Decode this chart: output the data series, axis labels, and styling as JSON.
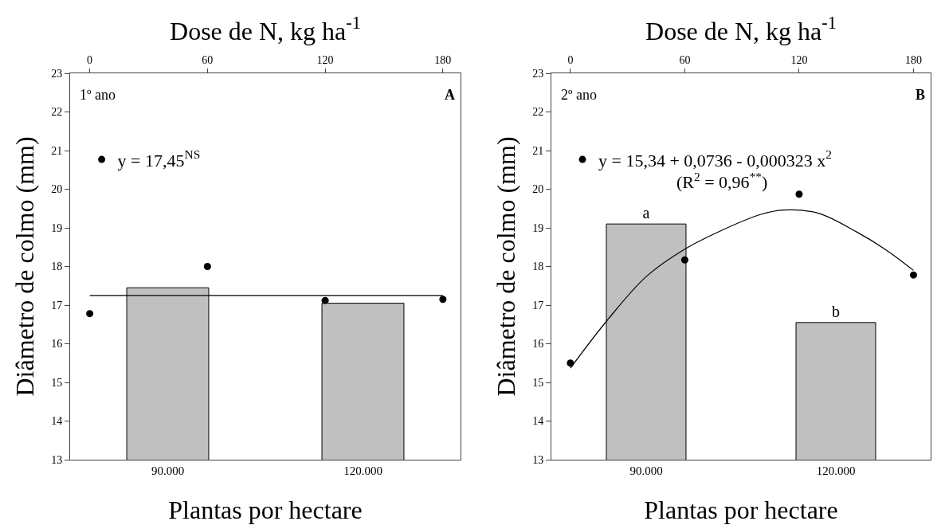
{
  "chart_data": [
    {
      "type": "bar",
      "xlabel": "Plantas por hectare",
      "x2label": "Dose de N, kg ha$^{-1}$",
      "ylabel": "Diâmetro de colmo (mm)",
      "categories": [
        "90.000",
        "120.000"
      ],
      "series": [
        {
          "type": "bar",
          "color": "#c0c0c0",
          "values": [
            17.45,
            17.05
          ]
        },
        {
          "type": "scatter",
          "name": "y = 17,45$^{NS}$",
          "marker": "circle",
          "color": "#000000",
          "axis": "x2",
          "x": [
            0,
            60,
            120,
            180
          ],
          "values": [
            16.78,
            18.0,
            17.12,
            17.15
          ]
        },
        {
          "type": "line",
          "color": "#000000",
          "axis": "x2",
          "x": [
            0,
            180
          ],
          "values": [
            17.25,
            17.25
          ]
        }
      ],
      "ylim": [
        13,
        23
      ],
      "yticks": [
        13,
        14,
        15,
        16,
        17,
        18,
        19,
        20,
        21,
        22,
        23
      ],
      "x2lim": [
        -10,
        189
      ],
      "x2ticks": [
        0,
        60,
        120,
        180
      ],
      "legend": "top left",
      "annotations": [
        "1º ano",
        "A"
      ]
    },
    {
      "type": "bar",
      "xlabel": "Plantas por hectare",
      "x2label": "Dose de N, kg ha$^{-1}$",
      "ylabel": "Diâmetro de colmo (mm)",
      "categories": [
        "90.000",
        "120.000"
      ],
      "series": [
        {
          "type": "bar",
          "color": "#c0c0c0",
          "values": [
            19.1,
            16.55
          ],
          "value_labels": [
            "a",
            "b"
          ]
        },
        {
          "type": "scatter",
          "name": "y = 15,34 + 0,0736 - 0,000323 x$^{2}$",
          "marker": "circle",
          "color": "#000000",
          "axis": "x2",
          "x": [
            0,
            60,
            120,
            180
          ],
          "values": [
            15.5,
            18.17,
            19.87,
            17.78
          ]
        },
        {
          "type": "line",
          "color": "#000000",
          "axis": "x2",
          "x": [
            0,
            20,
            40,
            60,
            80,
            100,
            112,
            130,
            150,
            165,
            180
          ],
          "values": [
            15.37,
            16.65,
            17.75,
            18.45,
            18.95,
            19.35,
            19.46,
            19.38,
            18.9,
            18.45,
            17.9
          ]
        }
      ],
      "ylim": [
        13,
        23
      ],
      "yticks": [
        13,
        14,
        15,
        16,
        17,
        18,
        19,
        20,
        21,
        22,
        23
      ],
      "x2lim": [
        -10,
        189
      ],
      "x2ticks": [
        0,
        60,
        120,
        180
      ],
      "legend": "top left",
      "annotations": [
        "2º ano",
        "B",
        "(R$^{2}$ = 0,96$^{**}$)"
      ]
    }
  ]
}
